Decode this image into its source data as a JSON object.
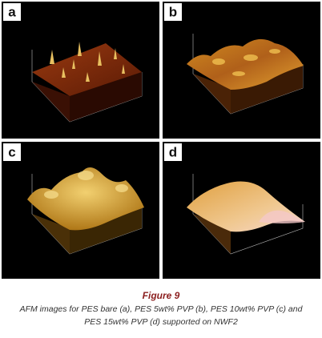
{
  "panels": [
    {
      "label": "a"
    },
    {
      "label": "b"
    },
    {
      "label": "c"
    },
    {
      "label": "d"
    }
  ],
  "caption": {
    "title": "Figure 9",
    "lines": [
      "AFM images for PES bare (a), PES 5wt% PVP (b), PES 10wt% PVP (c) and",
      "PES 15wt% PVP (d) supported on NWF2"
    ]
  }
}
